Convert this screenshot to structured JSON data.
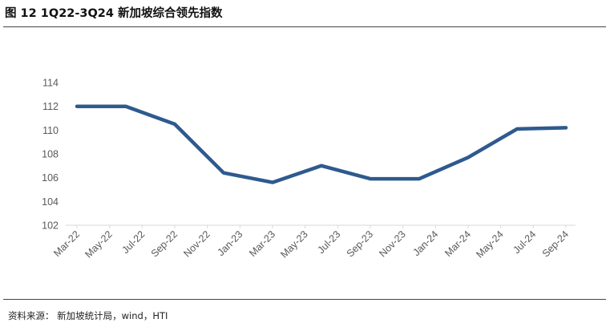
{
  "header": {
    "title": "图 12 1Q22-3Q24 新加坡综合领先指数"
  },
  "footer": {
    "source": "资料来源：  新加坡统计局，wind，HTI"
  },
  "chart_data": {
    "type": "line",
    "title": "",
    "xlabel": "",
    "ylabel": "",
    "categories": [
      "Mar-22",
      "May-22",
      "Jul-22",
      "Sep-22",
      "Nov-22",
      "Jan-23",
      "Mar-23",
      "May-23",
      "Jul-23",
      "Sep-23",
      "Nov-23",
      "Jan-24",
      "Mar-24",
      "May-24",
      "Jul-24",
      "Sep-24"
    ],
    "points": [
      {
        "x": "Mar-22",
        "y": 112.0
      },
      {
        "x": "Jun-22",
        "y": 112.0
      },
      {
        "x": "Sep-22",
        "y": 110.5
      },
      {
        "x": "Dec-22",
        "y": 106.4
      },
      {
        "x": "Mar-23",
        "y": 105.6
      },
      {
        "x": "Jun-23",
        "y": 107.0
      },
      {
        "x": "Sep-23",
        "y": 105.9
      },
      {
        "x": "Dec-23",
        "y": 105.9
      },
      {
        "x": "Mar-24",
        "y": 107.7
      },
      {
        "x": "Jun-24",
        "y": 110.1
      },
      {
        "x": "Sep-24",
        "y": 110.2
      }
    ],
    "ylim": [
      102,
      114
    ],
    "yticks": [
      102,
      104,
      106,
      108,
      110,
      112,
      114
    ],
    "grid": false,
    "legend": "none",
    "line_color": "#2e5a8e",
    "axis_color": "#d9d9d9",
    "tick_color": "#595959"
  }
}
